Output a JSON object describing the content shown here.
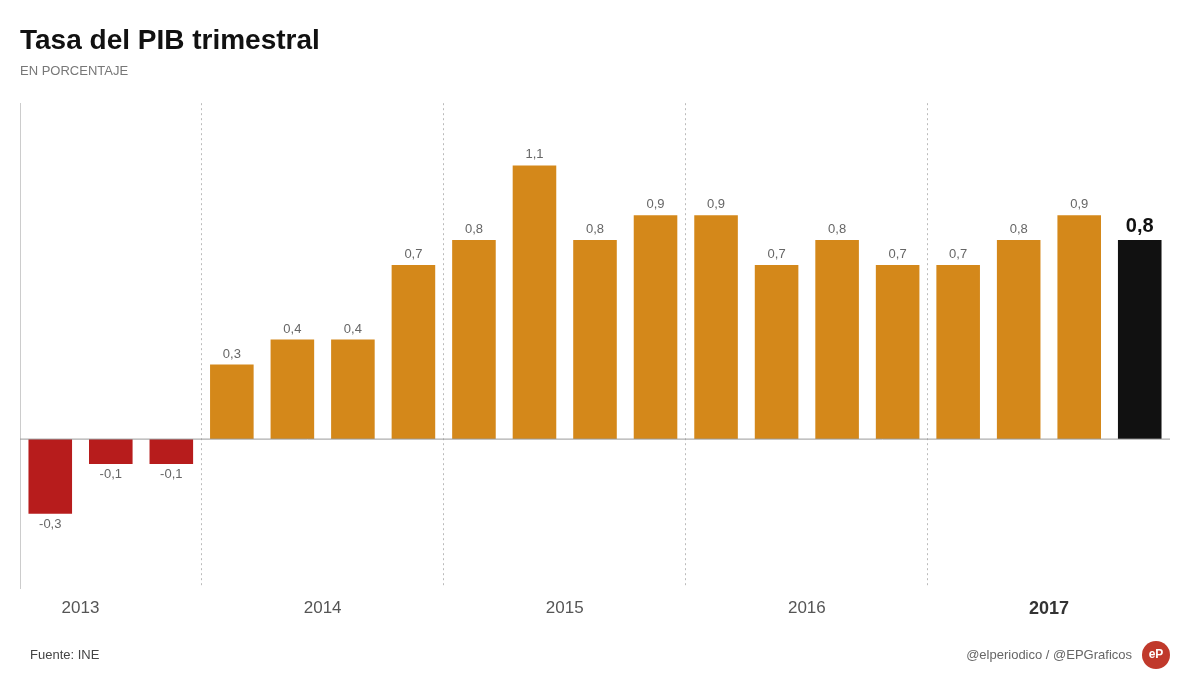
{
  "chart_data": {
    "type": "bar",
    "title": "Tasa del PIB trimestral",
    "subtitle": "EN PORCENTAJE",
    "annotations": [
      "Fuente: INE",
      "@elperiodico / @EPGraficos",
      "eP"
    ],
    "categories": [
      "2013",
      null,
      null,
      null,
      "2014",
      null,
      null,
      null,
      "2015",
      null,
      null,
      null,
      "2016",
      null,
      null,
      null,
      "2017",
      null,
      null
    ],
    "values": [
      -0.3,
      -0.1,
      -0.1,
      0.3,
      0.4,
      0.4,
      0.7,
      0.8,
      1.1,
      0.8,
      0.9,
      0.9,
      0.7,
      0.8,
      0.7,
      0.7,
      0.8,
      0.9,
      0.8
    ],
    "value_labels": [
      "-0,3",
      "-0,1",
      "-0,1",
      "0,3",
      "0,4",
      "0,4",
      "0,7",
      "0,8",
      "1,1",
      "0,8",
      "0,9",
      "0,9",
      "0,7",
      "0,8",
      "0,7",
      "0,7",
      "0,8",
      "0,9",
      "0,8"
    ],
    "colors": [
      "#b71c1c",
      "#b71c1c",
      "#b71c1c",
      "#d4881a",
      "#d4881a",
      "#d4881a",
      "#d4881a",
      "#d4881a",
      "#d4881a",
      "#d4881a",
      "#d4881a",
      "#d4881a",
      "#d4881a",
      "#d4881a",
      "#d4881a",
      "#d4881a",
      "#d4881a",
      "#d4881a",
      "#111111"
    ],
    "ylim": [
      -0.6,
      1.35
    ],
    "data_labels": true,
    "tick_labels": "x",
    "grid": false,
    "legend": false
  }
}
